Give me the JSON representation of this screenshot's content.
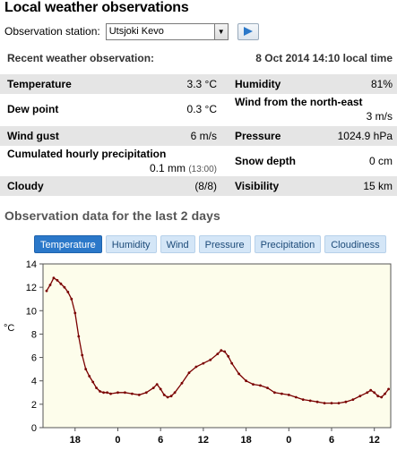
{
  "title": "Local weather observations",
  "station": {
    "label": "Observation station:",
    "selected": "Utsjoki Kevo"
  },
  "recent": {
    "label": "Recent weather observation:",
    "time": "8 Oct 2014 14:10 local time"
  },
  "observations": {
    "temperature": {
      "label": "Temperature",
      "value": "3.3 °C"
    },
    "humidity": {
      "label": "Humidity",
      "value": "81%"
    },
    "dew_point": {
      "label": "Dew point",
      "value": "0.3 °C"
    },
    "wind": {
      "label": "Wind from the north-east",
      "value": "3 m/s"
    },
    "wind_gust": {
      "label": "Wind gust",
      "value": "6 m/s"
    },
    "pressure": {
      "label": "Pressure",
      "value": "1024.9 hPa"
    },
    "precipitation": {
      "label": "Cumulated hourly precipitation",
      "value": "0.1 mm",
      "time": "(13:00)"
    },
    "snow_depth": {
      "label": "Snow depth",
      "value": "0 cm"
    },
    "cloudiness": {
      "label": "Cloudy",
      "value": "(8/8)"
    },
    "visibility": {
      "label": "Visibility",
      "value": "15 km"
    }
  },
  "section_title": "Observation data for the last 2 days",
  "tabs": [
    {
      "label": "Temperature",
      "active": true
    },
    {
      "label": "Humidity",
      "active": false
    },
    {
      "label": "Wind",
      "active": false
    },
    {
      "label": "Pressure",
      "active": false
    },
    {
      "label": "Precipitation",
      "active": false
    },
    {
      "label": "Cloudiness",
      "active": false
    }
  ],
  "colors": {
    "tab_active": "#2b78c9",
    "plot_bg": "#fdfdeb",
    "series": "#7a0000"
  },
  "chart_data": {
    "type": "line",
    "ylabel": "°C",
    "ylim": [
      0,
      14
    ],
    "yticks": [
      0,
      2,
      4,
      6,
      8,
      10,
      12,
      14
    ],
    "xlim": [
      13.5,
      62.3
    ],
    "xticks": [
      {
        "x": 18,
        "label": "18"
      },
      {
        "x": 24,
        "label": "0"
      },
      {
        "x": 30,
        "label": "6"
      },
      {
        "x": 36,
        "label": "12"
      },
      {
        "x": 42,
        "label": "18"
      },
      {
        "x": 48,
        "label": "0"
      },
      {
        "x": 54,
        "label": "6"
      },
      {
        "x": 60,
        "label": "12"
      }
    ],
    "series": [
      {
        "x": [
          14.0,
          14.5,
          15.0,
          15.5,
          16.0,
          16.5,
          17.0,
          17.5,
          18.0,
          18.5,
          19.0,
          19.5,
          20.0,
          20.5,
          21.0,
          21.5,
          22.0,
          22.5,
          23.0,
          24.0,
          25.0,
          26.0,
          27.0,
          28.0,
          29.0,
          29.5,
          30.0,
          30.5,
          31.0,
          31.5,
          32.0,
          33.0,
          34.0,
          35.0,
          36.0,
          37.0,
          38.0,
          38.5,
          39.0,
          39.5,
          40.0,
          41.0,
          42.0,
          43.0,
          44.0,
          45.0,
          46.0,
          47.0,
          48.0,
          49.0,
          50.0,
          51.0,
          52.0,
          53.0,
          54.0,
          55.0,
          56.0,
          57.0,
          58.0,
          59.0,
          59.5,
          60.0,
          60.5,
          61.0,
          61.5,
          62.0
        ],
        "values": [
          11.7,
          12.2,
          12.8,
          12.6,
          12.3,
          12.0,
          11.6,
          11.0,
          9.8,
          7.8,
          6.2,
          5.0,
          4.4,
          3.9,
          3.4,
          3.1,
          3.0,
          3.0,
          2.9,
          3.0,
          3.0,
          2.9,
          2.8,
          3.0,
          3.4,
          3.7,
          3.3,
          2.8,
          2.6,
          2.7,
          3.0,
          3.8,
          4.7,
          5.2,
          5.5,
          5.8,
          6.3,
          6.6,
          6.5,
          6.1,
          5.5,
          4.6,
          4.0,
          3.7,
          3.6,
          3.4,
          3.0,
          2.9,
          2.8,
          2.6,
          2.4,
          2.3,
          2.2,
          2.1,
          2.1,
          2.1,
          2.2,
          2.4,
          2.7,
          3.0,
          3.2,
          3.0,
          2.7,
          2.6,
          2.9,
          3.3
        ]
      }
    ]
  }
}
